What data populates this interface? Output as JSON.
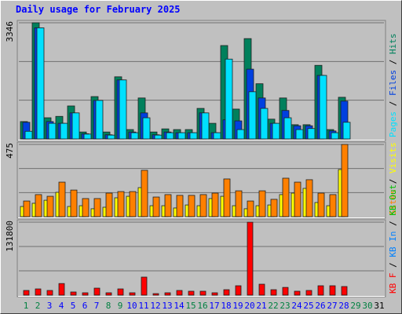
{
  "chart_data": {
    "type": "bar",
    "title": "Daily usage for February 2025",
    "categories": [
      "1",
      "2",
      "3",
      "4",
      "5",
      "6",
      "7",
      "8",
      "9",
      "10",
      "11",
      "12",
      "13",
      "14",
      "15",
      "16",
      "17",
      "18",
      "19",
      "20",
      "21",
      "22",
      "23",
      "24",
      "25",
      "26",
      "27",
      "28",
      "29",
      "30",
      "31"
    ],
    "category_colors": [
      "#008040",
      "#008040",
      "#0000ff",
      "#0000ff",
      "#0000ff",
      "#0000ff",
      "#0000ff",
      "#008040",
      "#008040",
      "#0000ff",
      "#0000ff",
      "#0000ff",
      "#0000ff",
      "#0000ff",
      "#008040",
      "#008040",
      "#0000ff",
      "#0000ff",
      "#0000ff",
      "#0000ff",
      "#0000ff",
      "#008040",
      "#008040",
      "#0000ff",
      "#0000ff",
      "#0000ff",
      "#0000ff",
      "#0000ff",
      "#008040",
      "#008040",
      "#000000"
    ],
    "legend_separator": " / ",
    "grid_divisions": 3,
    "panels": [
      {
        "ylim": [
          0,
          3346
        ],
        "yticks": [
          3346
        ],
        "series": [
          {
            "name": "Hits",
            "color": "#00805c",
            "values": [
              500,
              3346,
              610,
              650,
              950,
              200,
              1220,
              200,
              1790,
              270,
              1180,
              200,
              290,
              270,
              270,
              880,
              450,
              2690,
              860,
              2890,
              1590,
              570,
              1180,
              410,
              410,
              2120,
              270,
              1200,
              null,
              null,
              null
            ]
          },
          {
            "name": "Files",
            "color": "#0040e0",
            "values": [
              480,
              3200,
              500,
              450,
              750,
              150,
              1110,
              120,
              1700,
              200,
              750,
              120,
              200,
              180,
              180,
              750,
              180,
              550,
              520,
              2010,
              1180,
              450,
              820,
              380,
              380,
              1830,
              230,
              1090,
              null,
              null,
              null
            ]
          },
          {
            "name": "Pages",
            "color": "#00e0ff",
            "values": [
              220,
              3200,
              450,
              450,
              750,
              140,
              1110,
              110,
              1700,
              180,
              610,
              110,
              180,
              180,
              180,
              750,
              180,
              2300,
              270,
              1360,
              880,
              450,
              610,
              270,
              300,
              1830,
              180,
              480,
              null,
              null,
              null
            ]
          }
        ]
      },
      {
        "ylim": [
          0,
          475
        ],
        "yticks": [
          475
        ],
        "series": [
          {
            "name": "Visits",
            "color": "#ffff00",
            "values": [
              67,
              88,
              108,
              160,
              67,
              72,
              52,
              62,
              124,
              134,
              191,
              72,
              72,
              57,
              77,
              72,
              119,
              134,
              72,
              52,
              72,
              77,
              145,
              155,
              186,
              93,
              72,
              310,
              null,
              null,
              null
            ]
          },
          {
            "name": "Sites",
            "color": "#ff8000",
            "values": [
              103,
              145,
              134,
              227,
              175,
              119,
              119,
              155,
              165,
              165,
              305,
              129,
              145,
              140,
              140,
              145,
              155,
              248,
              170,
              103,
              170,
              114,
              253,
              227,
              243,
              155,
              145,
              475,
              null,
              null,
              null
            ]
          }
        ]
      },
      {
        "ylim": [
          0,
          131800
        ],
        "yticks": [
          131800
        ],
        "series": [
          {
            "name": "KB Out",
            "color": "#00c000",
            "values": [
              null,
              null,
              null,
              null,
              null,
              null,
              null,
              null,
              null,
              null,
              null,
              null,
              null,
              null,
              null,
              null,
              null,
              null,
              null,
              null,
              null,
              null,
              null,
              null,
              null,
              null,
              null,
              null,
              null,
              null,
              null
            ]
          },
          {
            "name": "KB In",
            "color": "#0080ff",
            "values": [
              null,
              null,
              null,
              null,
              null,
              null,
              null,
              null,
              null,
              null,
              null,
              null,
              null,
              null,
              null,
              null,
              null,
              null,
              null,
              null,
              null,
              null,
              null,
              null,
              null,
              null,
              null,
              null,
              null,
              null,
              null
            ]
          },
          {
            "name": "KB F",
            "color": "#ff0000",
            "values": [
              8500,
              11300,
              8500,
              21000,
              5700,
              4300,
              12700,
              4300,
              11300,
              4300,
              32600,
              2800,
              4300,
              8500,
              7100,
              7100,
              4300,
              9900,
              17000,
              131800,
              19800,
              9900,
              14000,
              7100,
              8500,
              17000,
              17000,
              15600,
              null,
              null,
              null
            ]
          }
        ]
      }
    ]
  }
}
